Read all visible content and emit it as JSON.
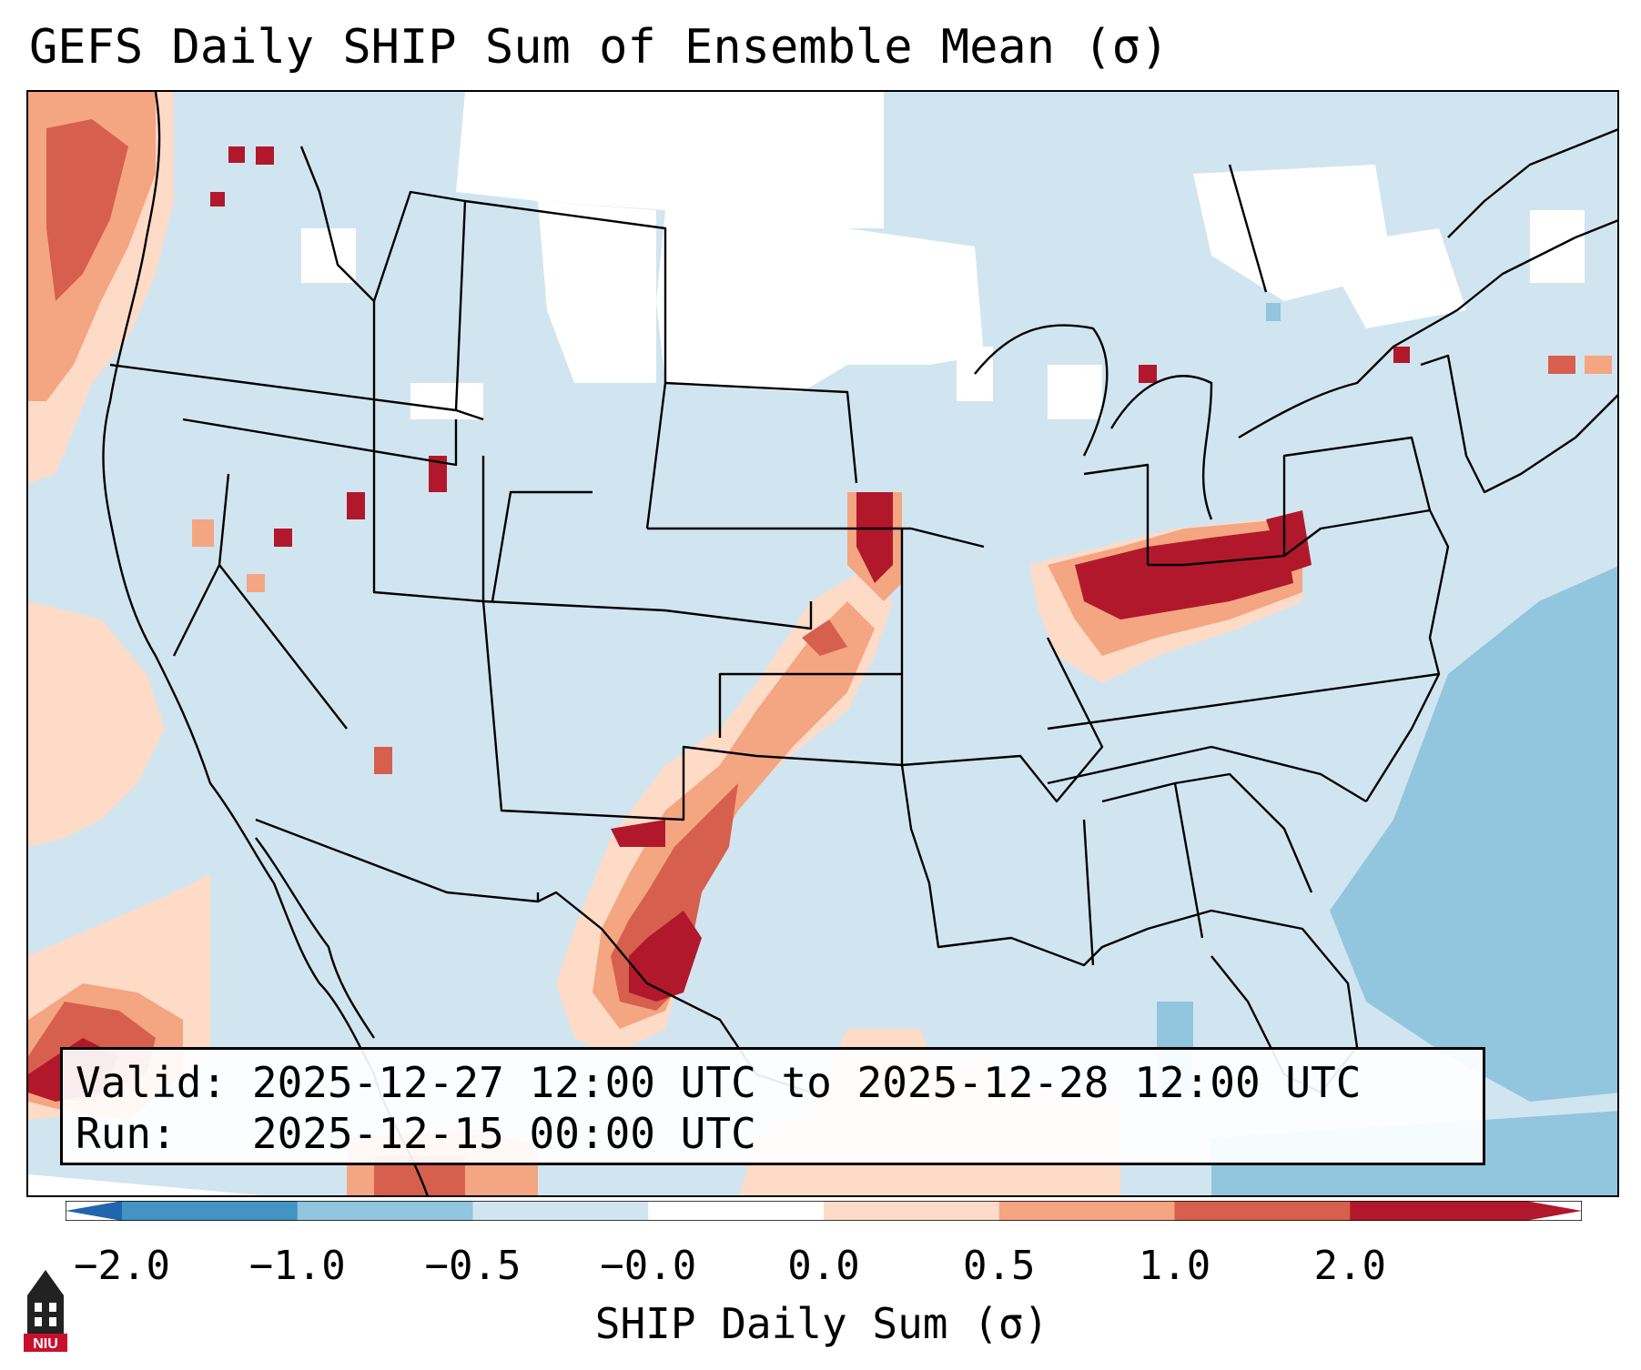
{
  "title": "GEFS Daily SHIP Sum of Ensemble Mean (σ)",
  "info": {
    "valid_label": "Valid:",
    "valid_value": "2025-12-27 12:00 UTC to 2025-12-28 12:00 UTC",
    "run_label": "Run:",
    "run_value": "2025-12-15 00:00 UTC"
  },
  "colorbar": {
    "label": "SHIP Daily Sum (σ)",
    "ticks": [
      "−2.0",
      "−1.0",
      "−0.5",
      "−0.0",
      "0.0",
      "0.5",
      "1.0",
      "2.0"
    ],
    "bins": [
      {
        "range": "-2.0 to -1.0",
        "color": "#4393c3"
      },
      {
        "range": "-1.0 to -0.5",
        "color": "#92c5de"
      },
      {
        "range": "-0.5 to -0.0",
        "color": "#d1e5f0"
      },
      {
        "range": "-0.0 to 0.0",
        "color": "#ffffff"
      },
      {
        "range": "0.0 to 0.5",
        "color": "#fddbc7"
      },
      {
        "range": "0.5 to 1.0",
        "color": "#f4a582"
      },
      {
        "range": "1.0 to 2.0",
        "color": "#d6604d"
      },
      {
        "range": "> 2.0",
        "color": "#b2182b"
      }
    ],
    "extend_low_color": "#2166ac",
    "extend_high_color": "#b2182b"
  },
  "logo": {
    "text": "NIU",
    "icon": "university-building-icon"
  }
}
